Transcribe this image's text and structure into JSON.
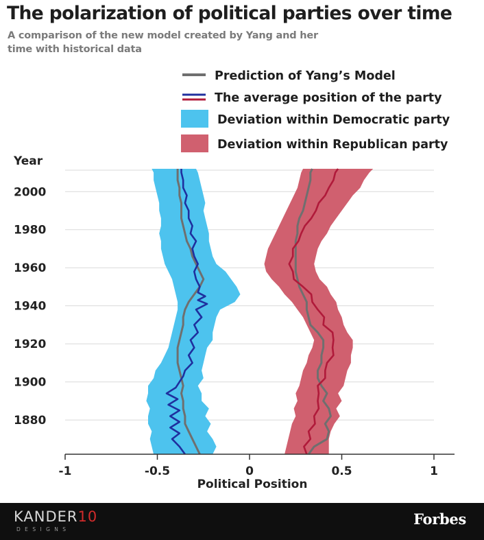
{
  "header": {
    "title": "The polarization of political parties over time",
    "subtitle": "A comparison of the new model created by Yang and her time with historical data"
  },
  "footer": {
    "brand_name": "KANDER",
    "brand_number": "10",
    "brand_sub": "DESIGNS",
    "publisher": "Forbes"
  },
  "colors": {
    "democratic_band": "#4dc3ee",
    "republican_band": "#d0606f",
    "democratic_line": "#1f2f9e",
    "republican_line": "#b01a3a",
    "model_line": "#6f6f6f"
  },
  "chart_data": {
    "type": "line",
    "xlabel": "Political Position",
    "ylabel": "Year",
    "xlim": [
      -1,
      1
    ],
    "ylim": [
      1862,
      2012
    ],
    "x_ticks": [
      -1,
      -0.5,
      0,
      0.5,
      1
    ],
    "x_tick_labels": [
      "-1",
      "-0.5",
      "0",
      "0.5",
      "1"
    ],
    "y_ticks": [
      1880,
      1900,
      1920,
      1940,
      1960,
      1980,
      2000
    ],
    "y_tick_labels": [
      "1880",
      "1900",
      "1920",
      "1940",
      "1960",
      "1980",
      "2000"
    ],
    "grid": "horizontal",
    "legend": [
      {
        "label": "Prediction of Yang’s Model",
        "kind": "model"
      },
      {
        "label": "The average position of the party",
        "kind": "average"
      },
      {
        "label": "Deviation within Democratic party",
        "kind": "dem-band"
      },
      {
        "label": "Deviation within Republican party",
        "kind": "rep-band"
      }
    ],
    "democratic_band": {
      "years": [
        1862,
        1866,
        1870,
        1874,
        1878,
        1882,
        1886,
        1890,
        1894,
        1898,
        1902,
        1906,
        1910,
        1914,
        1918,
        1922,
        1926,
        1930,
        1934,
        1938,
        1942,
        1946,
        1950,
        1954,
        1958,
        1962,
        1966,
        1970,
        1974,
        1978,
        1982,
        1986,
        1990,
        1994,
        1998,
        2002,
        2006,
        2010,
        2012
      ],
      "lower": [
        -0.52,
        -0.53,
        -0.54,
        -0.53,
        -0.55,
        -0.55,
        -0.54,
        -0.56,
        -0.55,
        -0.55,
        -0.52,
        -0.51,
        -0.48,
        -0.46,
        -0.44,
        -0.43,
        -0.42,
        -0.41,
        -0.4,
        -0.39,
        -0.39,
        -0.4,
        -0.41,
        -0.42,
        -0.44,
        -0.46,
        -0.47,
        -0.48,
        -0.48,
        -0.49,
        -0.48,
        -0.48,
        -0.49,
        -0.49,
        -0.5,
        -0.51,
        -0.52,
        -0.52,
        -0.53
      ],
      "upper": [
        -0.2,
        -0.18,
        -0.2,
        -0.23,
        -0.21,
        -0.24,
        -0.22,
        -0.26,
        -0.26,
        -0.28,
        -0.25,
        -0.26,
        -0.25,
        -0.24,
        -0.23,
        -0.2,
        -0.2,
        -0.19,
        -0.18,
        -0.16,
        -0.08,
        -0.05,
        -0.07,
        -0.1,
        -0.13,
        -0.18,
        -0.2,
        -0.21,
        -0.22,
        -0.22,
        -0.23,
        -0.24,
        -0.25,
        -0.24,
        -0.25,
        -0.26,
        -0.27,
        -0.28,
        -0.29
      ]
    },
    "democratic_average": {
      "years": [
        1862,
        1866,
        1870,
        1873,
        1876,
        1879,
        1882,
        1885,
        1888,
        1891,
        1894,
        1897,
        1900,
        1903,
        1906,
        1910,
        1914,
        1918,
        1922,
        1926,
        1930,
        1934,
        1938,
        1941,
        1943,
        1945,
        1947,
        1950,
        1954,
        1958,
        1962,
        1966,
        1970,
        1974,
        1978,
        1982,
        1986,
        1990,
        1994,
        1998,
        2002,
        2006,
        2010,
        2012
      ],
      "values": [
        -0.35,
        -0.38,
        -0.42,
        -0.38,
        -0.43,
        -0.38,
        -0.43,
        -0.38,
        -0.44,
        -0.39,
        -0.45,
        -0.4,
        -0.38,
        -0.36,
        -0.35,
        -0.31,
        -0.33,
        -0.3,
        -0.32,
        -0.28,
        -0.3,
        -0.26,
        -0.29,
        -0.23,
        -0.28,
        -0.24,
        -0.28,
        -0.27,
        -0.29,
        -0.3,
        -0.28,
        -0.3,
        -0.31,
        -0.29,
        -0.32,
        -0.31,
        -0.33,
        -0.33,
        -0.35,
        -0.34,
        -0.36,
        -0.36,
        -0.37,
        -0.37
      ]
    },
    "democratic_model": {
      "years": [
        1862,
        1866,
        1870,
        1874,
        1878,
        1882,
        1886,
        1890,
        1894,
        1898,
        1902,
        1906,
        1910,
        1914,
        1918,
        1922,
        1926,
        1930,
        1934,
        1938,
        1942,
        1946,
        1950,
        1954,
        1958,
        1962,
        1966,
        1970,
        1974,
        1978,
        1982,
        1986,
        1990,
        1994,
        1998,
        2002,
        2006,
        2010,
        2012
      ],
      "values": [
        -0.27,
        -0.29,
        -0.31,
        -0.33,
        -0.35,
        -0.35,
        -0.36,
        -0.36,
        -0.37,
        -0.36,
        -0.37,
        -0.38,
        -0.39,
        -0.39,
        -0.39,
        -0.38,
        -0.37,
        -0.36,
        -0.36,
        -0.35,
        -0.33,
        -0.3,
        -0.27,
        -0.25,
        -0.27,
        -0.29,
        -0.31,
        -0.32,
        -0.34,
        -0.35,
        -0.36,
        -0.37,
        -0.37,
        -0.37,
        -0.38,
        -0.38,
        -0.39,
        -0.39,
        -0.39
      ]
    },
    "republican_band": {
      "years": [
        1862,
        1866,
        1870,
        1874,
        1878,
        1882,
        1886,
        1890,
        1894,
        1898,
        1902,
        1906,
        1910,
        1914,
        1918,
        1922,
        1926,
        1930,
        1934,
        1938,
        1942,
        1946,
        1950,
        1954,
        1958,
        1962,
        1966,
        1970,
        1974,
        1978,
        1982,
        1986,
        1990,
        1994,
        1998,
        2002,
        2006,
        2010,
        2012
      ],
      "lower": [
        0.19,
        0.2,
        0.21,
        0.22,
        0.23,
        0.25,
        0.24,
        0.26,
        0.25,
        0.27,
        0.28,
        0.29,
        0.31,
        0.32,
        0.34,
        0.35,
        0.33,
        0.31,
        0.29,
        0.26,
        0.23,
        0.19,
        0.16,
        0.12,
        0.09,
        0.08,
        0.09,
        0.1,
        0.12,
        0.14,
        0.16,
        0.18,
        0.2,
        0.22,
        0.24,
        0.26,
        0.27,
        0.28,
        0.29
      ]
    }
  }
}
